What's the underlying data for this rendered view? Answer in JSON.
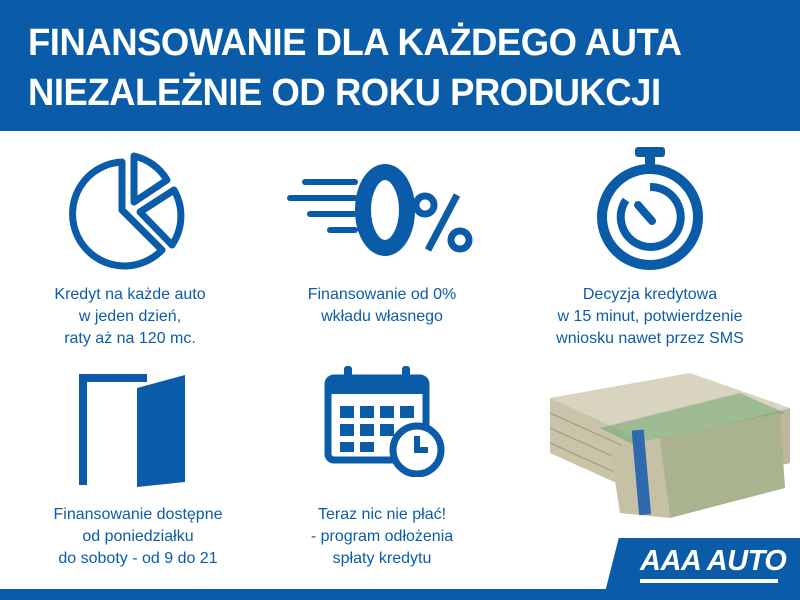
{
  "header": {
    "line1": "FINANSOWANIE DLA KAŻDEGO AUTA",
    "line2": "NIEZALEŻNIE OD ROKU PRODUKCJI"
  },
  "features": [
    {
      "icon": "pie-chart-icon",
      "lines": [
        "Kredyt na każde auto",
        "w jeden dzień,",
        "raty aż na 120 mc."
      ]
    },
    {
      "icon": "zero-percent-icon",
      "lines": [
        "Finansowanie od 0%",
        "wkładu własnego"
      ]
    },
    {
      "icon": "stopwatch-icon",
      "lines": [
        "Decyzja kredytowa",
        "w 15 minut, potwierdzenie",
        "wniosku nawet przez SMS"
      ]
    },
    {
      "icon": "open-door-icon",
      "lines": [
        "Finansowanie dostępne",
        "od poniedziałku",
        "do soboty - od 9 do 21"
      ]
    },
    {
      "icon": "calendar-clock-icon",
      "lines": [
        "Teraz nic nie płać!",
        "- program odłożenia",
        "spłaty kredytu"
      ]
    }
  ],
  "logo": "AAA AUTO",
  "colors": {
    "brand": "#0b5ca8"
  }
}
